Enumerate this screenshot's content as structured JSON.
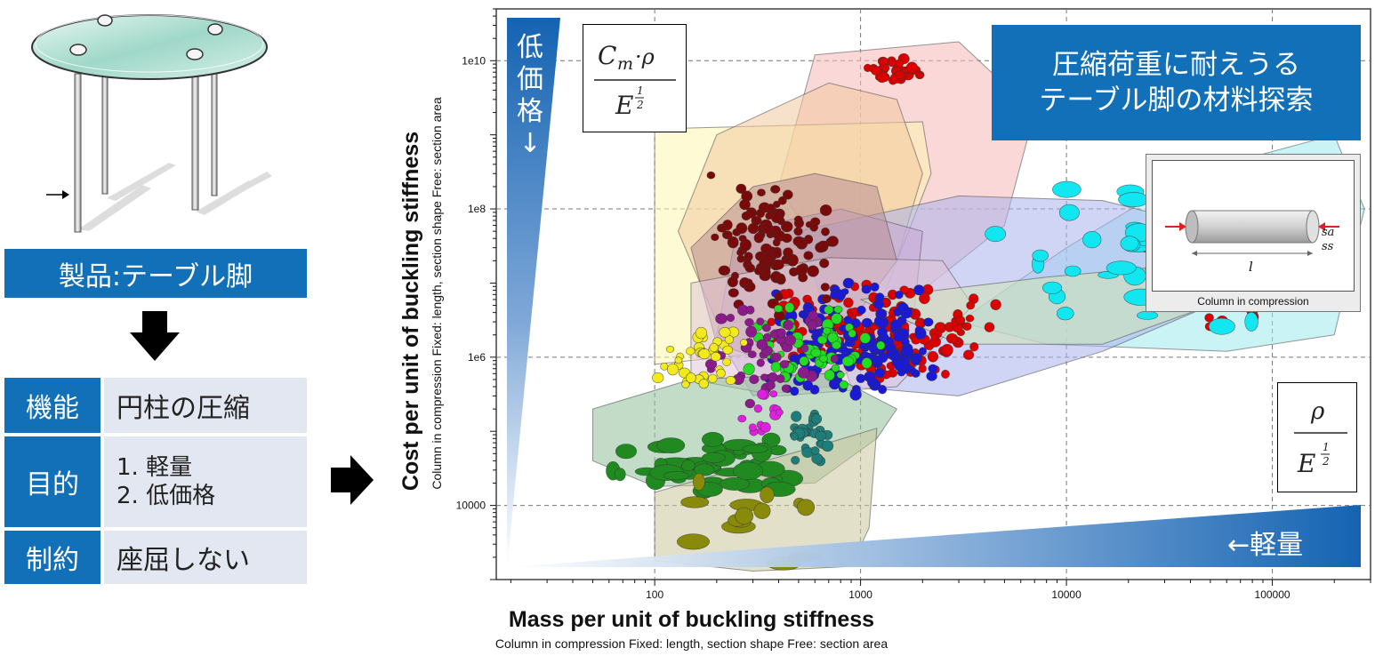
{
  "product_label": "製品:テーブル脚",
  "table": [
    {
      "key": "機能",
      "value": [
        "円柱の圧縮"
      ]
    },
    {
      "key": "目的",
      "value": [
        "1. 軽量",
        "2. 低価格"
      ]
    },
    {
      "key": "制約",
      "value": [
        "座屈しない"
      ]
    }
  ],
  "title_lines": [
    "圧縮荷重に耐えうる",
    "テーブル脚の材料探索"
  ],
  "y_arrow_label": [
    "低",
    "価",
    "格",
    "↓"
  ],
  "x_arrow_label": "←軽量",
  "formula_top": {
    "num": "C",
    "num_sub": "m",
    "num_rest": "·ρ",
    "den": "E",
    "exp_num": "1",
    "exp_den": "2"
  },
  "formula_right": {
    "num": "ρ",
    "den": "E",
    "exp_num": "1",
    "exp_den": "2"
  },
  "inset": {
    "caption": "Column in compression",
    "length_symbol": "l",
    "section_symbols": [
      "sa",
      "ss"
    ]
  },
  "colors": {
    "accent_blue": "#1170b8",
    "panel_bg": "#e3e7f1"
  },
  "chart_data": {
    "type": "scatter",
    "xlabel": "Mass per unit of buckling stiffness",
    "xlabel_sub": "Column in compression   Fixed: length, section shape   Free: section area",
    "ylabel": "Cost per unit of buckling stiffness",
    "ylabel_sub": "Column in compression   Fixed: length, section shape   Free: section area",
    "x_scale": "log",
    "y_scale": "log",
    "xlim": [
      17,
      300000
    ],
    "ylim": [
      1000,
      50000000000
    ],
    "x_ticks": [
      100,
      1000,
      10000,
      100000
    ],
    "x_tick_labels": [
      "100",
      "1000",
      "10000",
      "100000"
    ],
    "y_ticks": [
      10000,
      1000000,
      100000000,
      10000000000
    ],
    "y_tick_labels": [
      "10000",
      "1e6",
      "1e8",
      "1e10"
    ],
    "grid": true,
    "families": [
      {
        "color": "#f5b8b8",
        "hull": [
          [
            600,
            12000000000.0
          ],
          [
            3000,
            18000000000.0
          ],
          [
            7000,
            2000000000.0
          ],
          [
            5000,
            60000000.0
          ],
          [
            2000,
            8000000.0
          ],
          [
            800,
            10000000.0
          ],
          [
            400,
            200000000.0
          ]
        ]
      },
      {
        "color": "#fbf6b0",
        "hull": [
          [
            100,
            1200000000.0
          ],
          [
            2000,
            1500000000.0
          ],
          [
            2200,
            300000000.0
          ],
          [
            1200,
            4000000.0
          ],
          [
            400,
            1200000.0
          ],
          [
            100,
            800000.0
          ]
        ]
      },
      {
        "color": "#f2c89e",
        "hull": [
          [
            200,
            1000000000.0
          ],
          [
            700,
            5000000000.0
          ],
          [
            1500,
            3000000000.0
          ],
          [
            2000,
            300000000.0
          ],
          [
            1500,
            20000000.0
          ],
          [
            700,
            3000000.0
          ],
          [
            200,
            3000000.0
          ],
          [
            130,
            50000000.0
          ]
        ]
      },
      {
        "color": "#9fe9ee",
        "hull": [
          [
            3000,
            3000000.0
          ],
          [
            10000,
            30000000.0
          ],
          [
            40000,
            300000000.0
          ],
          [
            200000,
            1000000000.0
          ],
          [
            280000,
            100000000.0
          ],
          [
            200000,
            2000000.0
          ],
          [
            60000,
            1200000.0
          ],
          [
            8000,
            1500000.0
          ]
        ]
      },
      {
        "color": "#a9b3ec",
        "hull": [
          [
            500,
            50000000.0
          ],
          [
            3000,
            150000000.0
          ],
          [
            15000,
            130000000.0
          ],
          [
            60000,
            50000000.0
          ],
          [
            50000,
            5000000.0
          ],
          [
            15000,
            1200000.0
          ],
          [
            3000,
            300000.0
          ],
          [
            900,
            400000.0
          ]
        ]
      },
      {
        "color": "#c9a7d7",
        "hull": [
          [
            250,
            50000000.0
          ],
          [
            800,
            100000000.0
          ],
          [
            2000,
            50000000.0
          ],
          [
            1800,
            3000000.0
          ],
          [
            700,
            400000.0
          ],
          [
            300,
            300000.0
          ],
          [
            200,
            2000000.0
          ]
        ]
      },
      {
        "color": "#b98f96",
        "hull": [
          [
            150,
            30000000.0
          ],
          [
            300,
            200000000.0
          ],
          [
            600,
            300000000.0
          ],
          [
            1200,
            200000000.0
          ],
          [
            1500,
            20000000.0
          ],
          [
            900,
            3000000.0
          ],
          [
            400,
            800000.0
          ],
          [
            200,
            1500000.0
          ]
        ]
      },
      {
        "color": "#e0c4d8",
        "hull": [
          [
            150,
            10000000.0
          ],
          [
            700,
            22000000.0
          ],
          [
            2500,
            20000000.0
          ],
          [
            3500,
            5000000.0
          ],
          [
            1500,
            400000.0
          ],
          [
            400,
            300000.0
          ],
          [
            150,
            500000.0
          ]
        ]
      },
      {
        "color": "#cfe4b4",
        "hull": [
          [
            1000,
            6000000.0
          ],
          [
            8000,
            12000000.0
          ],
          [
            40000,
            18000000.0
          ],
          [
            50000,
            5000000.0
          ],
          [
            15000,
            1500000.0
          ],
          [
            3000,
            1500000.0
          ]
        ]
      },
      {
        "color": "#8fc09a",
        "hull": [
          [
            50,
            200000.0
          ],
          [
            150,
            500000.0
          ],
          [
            700,
            600000.0
          ],
          [
            1500,
            200000.0
          ],
          [
            1200,
            80000.0
          ],
          [
            600,
            20000.0
          ],
          [
            100,
            18000.0
          ],
          [
            50,
            40000.0
          ]
        ]
      },
      {
        "color": "#ccc79c",
        "hull": [
          [
            100,
            15000.0
          ],
          [
            700,
            70000.0
          ],
          [
            1200,
            110000.0
          ],
          [
            1100,
            5000.0
          ],
          [
            900,
            1500.0
          ],
          [
            300,
            1300.0
          ],
          [
            100,
            1800.0
          ]
        ]
      }
    ],
    "clusters": [
      {
        "color": "#dd0000",
        "cx": [
          300,
          5000
        ],
        "cy": [
          400000.0,
          12000000.0
        ],
        "n": 170
      },
      {
        "color": "#dd0000",
        "cx": [
          1000,
          2200
        ],
        "cy": [
          5000000000.0,
          11000000000.0
        ],
        "n": 30
      },
      {
        "color": "#dd0000",
        "cx": [
          20000,
          180000
        ],
        "cy": [
          2000000.0,
          50000000.0
        ],
        "n": 35
      },
      {
        "color": "#1a1ad6",
        "cx": [
          350,
          2500
        ],
        "cy": [
          200000.0,
          12000000.0
        ],
        "n": 170
      },
      {
        "color": "#7a0a0a",
        "cx": [
          150,
          800
        ],
        "cy": [
          3000000.0,
          400000000.0
        ],
        "n": 110
      },
      {
        "color": "#22dd22",
        "cx": [
          250,
          1500
        ],
        "cy": [
          300000.0,
          6000000.0
        ],
        "n": 60
      },
      {
        "color": "#8b1a8b",
        "cx": [
          150,
          900
        ],
        "cy": [
          200000.0,
          5000000.0
        ],
        "n": 50
      },
      {
        "color": "#f2ea1a",
        "cx": [
          100,
          300
        ],
        "cy": [
          300000.0,
          3000000.0
        ],
        "n": 40
      },
      {
        "color": "#e020e0",
        "cx": [
          250,
          450
        ],
        "cy": [
          60000.0,
          400000.0
        ],
        "n": 14
      },
      {
        "color": "#1d7d78",
        "cx": [
          450,
          700
        ],
        "cy": [
          30000.0,
          300000.0
        ],
        "n": 30
      },
      {
        "color": "#208a20",
        "cx": [
          60,
          700
        ],
        "cy": [
          12000.0,
          90000.0
        ],
        "n": 55
      },
      {
        "color": "#8a8a0a",
        "cx": [
          100,
          900
        ],
        "cy": [
          1600.0,
          25000.0
        ],
        "n": 14
      },
      {
        "color": "#12e6f0",
        "cx": [
          4000,
          200000
        ],
        "cy": [
          1500000.0,
          300000000.0
        ],
        "n": 45
      }
    ]
  }
}
